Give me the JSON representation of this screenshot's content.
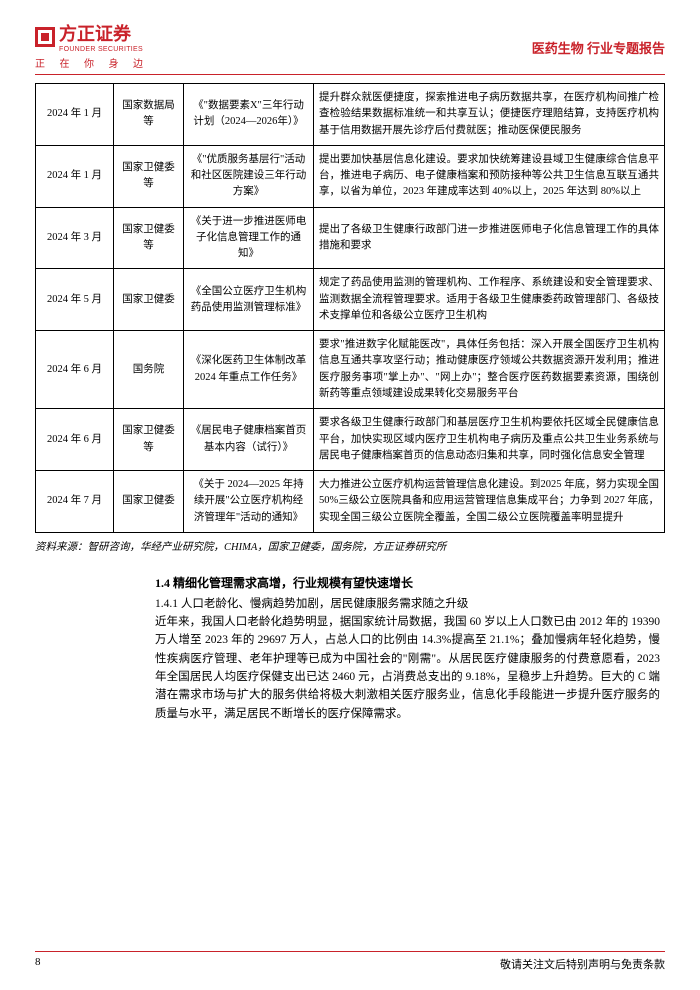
{
  "header": {
    "logo_text": "方正证券",
    "logo_sub": "FOUNDER SECURITIES",
    "tagline": "正 在 你 身 边",
    "right": "医药生物 行业专题报告"
  },
  "table": {
    "rows": [
      {
        "date": "2024 年 1 月",
        "org": "国家数据局等",
        "doc": "《\"数据要素X\"三年行动计划（2024—2026年）》",
        "desc": "提升群众就医便捷度，探索推进电子病历数据共享，在医疗机构间推广检查检验结果数据标准统一和共享互认；便捷医疗理赔结算，支持医疗机构基于信用数据开展先诊疗后付费就医；推动医保便民服务"
      },
      {
        "date": "2024 年 1 月",
        "org": "国家卫健委等",
        "doc": "《\"优质服务基层行\"活动和社区医院建设三年行动方案》",
        "desc": "提出要加快基层信息化建设。要求加快统筹建设县域卫生健康综合信息平台，推进电子病历、电子健康档案和预防接种等公共卫生信息互联互通共享，以省为单位，2023 年建成率达到 40%以上，2025 年达到 80%以上"
      },
      {
        "date": "2024 年 3 月",
        "org": "国家卫健委等",
        "doc": "《关于进一步推进医师电子化信息管理工作的通知》",
        "desc": "提出了各级卫生健康行政部门进一步推进医师电子化信息管理工作的具体措施和要求"
      },
      {
        "date": "2024 年 5 月",
        "org": "国家卫健委",
        "doc": "《全国公立医疗卫生机构药品使用监测管理标准》",
        "desc": "规定了药品使用监测的管理机构、工作程序、系统建设和安全管理要求、监测数据全流程管理要求。适用于各级卫生健康委药政管理部门、各级技术支撑单位和各级公立医疗卫生机构"
      },
      {
        "date": "2024 年 6 月",
        "org": "国务院",
        "doc": "《深化医药卫生体制改革 2024 年重点工作任务》",
        "desc": "要求\"推进数字化赋能医改\"，具体任务包括：深入开展全国医疗卫生机构信息互通共享攻坚行动；推动健康医疗领域公共数据资源开发利用；推进医疗服务事项\"掌上办\"、\"网上办\"；整合医疗医药数据要素资源，围绕创新药等重点领域建设成果转化交易服务平台"
      },
      {
        "date": "2024 年 6 月",
        "org": "国家卫健委等",
        "doc": "《居民电子健康档案首页基本内容（试行）》",
        "desc": "要求各级卫生健康行政部门和基层医疗卫生机构要依托区域全民健康信息平台，加快实现区域内医疗卫生机构电子病历及重点公共卫生业务系统与居民电子健康档案首页的信息动态归集和共享，同时强化信息安全管理"
      },
      {
        "date": "2024 年 7 月",
        "org": "国家卫健委",
        "doc": "《关于 2024—2025 年持续开展\"公立医疗机构经济管理年\"活动的通知》",
        "desc": "大力推进公立医疗机构运营管理信息化建设。到2025 年底，努力实现全国 50%三级公立医院具备和应用运营管理信息集成平台；力争到 2027 年底，实现全国三级公立医院全覆盖，全国二级公立医院覆盖率明显提升"
      }
    ]
  },
  "source": "资料来源：智研咨询，华经产业研究院，CHIMA，国家卫健委，国务院，方正证券研究所",
  "section": {
    "title": "1.4 精细化管理需求高增，行业规模有望快速增长",
    "subtitle": "1.4.1 人口老龄化、慢病趋势加剧，居民健康服务需求随之升级",
    "body": "近年来，我国人口老龄化趋势明显，据国家统计局数据，我国 60 岁以上人口数已由 2012 年的 19390 万人增至 2023 年的 29697 万人，占总人口的比例由 14.3%提高至 21.1%；叠加慢病年轻化趋势，慢性疾病医疗管理、老年护理等已成为中国社会的\"刚需\"。从居民医疗健康服务的付费意愿看，2023 年全国居民人均医疗保健支出已达 2460 元，占消费总支出的 9.18%，呈稳步上升趋势。巨大的 C 端潜在需求市场与扩大的服务供给将极大刺激相关医疗服务业，信息化手段能进一步提升医疗服务的质量与水平，满足居民不断增长的医疗保障需求。"
  },
  "footer": {
    "page": "8",
    "disclaimer": "敬请关注文后特别声明与免责条款"
  }
}
